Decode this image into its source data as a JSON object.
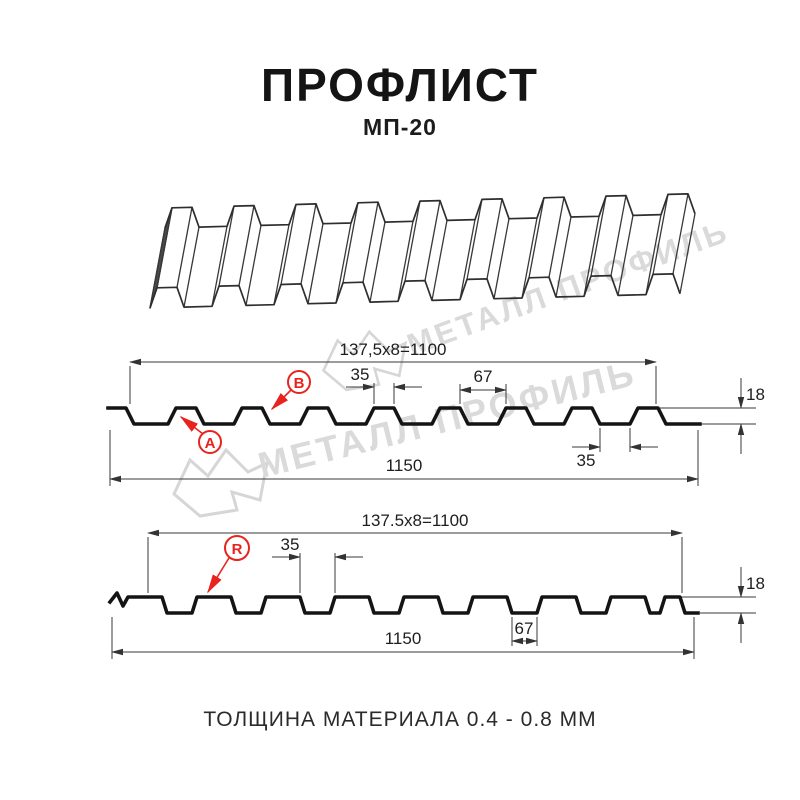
{
  "header": {
    "title": "ПРОФЛИСТ",
    "subtitle": "МП-20"
  },
  "footer": {
    "text": "ТОЛЩИНА МАТЕРИАЛА 0.4 - 0.8 ММ"
  },
  "watermark": {
    "text": "МЕТАЛЛ ПРОФИЛЬ"
  },
  "colors": {
    "accent_red": "#e8231d",
    "drawing_line": "#141414",
    "watermark_gray": "#dadada"
  },
  "section_top": {
    "label_a": "A",
    "label_b": "B",
    "dim_width_formula": "137,5x8=1100",
    "dim_rib_top": "35",
    "dim_valley_top": "67",
    "dim_height": "18",
    "dim_valley_bottom": "35",
    "dim_total_width": "1150"
  },
  "section_bottom": {
    "label_r": "R",
    "dim_width_formula": "137.5x8=1100",
    "dim_gap_top": "35",
    "dim_valley_bottom": "67",
    "dim_height": "18",
    "dim_total_width": "1150"
  }
}
